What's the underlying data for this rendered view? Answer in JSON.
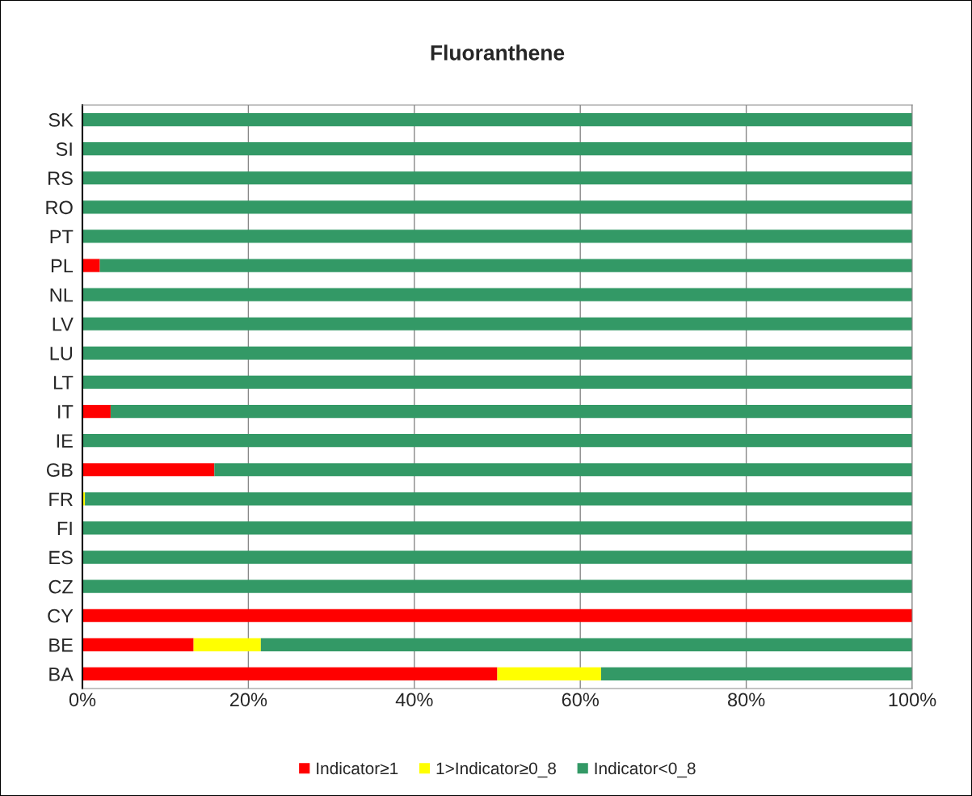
{
  "chart_data": {
    "type": "bar",
    "orientation": "horizontal",
    "stacked": true,
    "title": "Fluoranthene",
    "categories": [
      "SK",
      "SI",
      "RS",
      "RO",
      "PT",
      "PL",
      "NL",
      "LV",
      "LU",
      "LT",
      "IT",
      "IE",
      "GB",
      "FR",
      "FI",
      "ES",
      "CZ",
      "CY",
      "BE",
      "BA"
    ],
    "series": [
      {
        "name": "Indicator≥1",
        "color": "#ff0000",
        "values": [
          0,
          0,
          0,
          0,
          0,
          2.1,
          0,
          0,
          0,
          0,
          3.4,
          0,
          15.9,
          0,
          0,
          0,
          0,
          100,
          13.4,
          50
        ]
      },
      {
        "name": "1>Indicator≥0_8",
        "color": "#ffff00",
        "values": [
          0,
          0,
          0,
          0,
          0,
          0,
          0,
          0,
          0,
          0,
          0,
          0,
          0,
          0.3,
          0,
          0,
          0,
          0,
          8.1,
          12.5
        ]
      },
      {
        "name": "Indicator<0_8",
        "color": "#339966",
        "values": [
          100,
          100,
          100,
          100,
          100,
          97.9,
          100,
          100,
          100,
          100,
          96.6,
          100,
          84.1,
          99.7,
          100,
          100,
          100,
          0,
          78.5,
          37.5
        ]
      }
    ],
    "xlim": [
      0,
      100
    ],
    "xticks": [
      {
        "value": 0,
        "label": "0%"
      },
      {
        "value": 20,
        "label": "20%"
      },
      {
        "value": 40,
        "label": "40%"
      },
      {
        "value": 60,
        "label": "60%"
      },
      {
        "value": 80,
        "label": "80%"
      },
      {
        "value": 100,
        "label": "100%"
      }
    ],
    "grid": "x",
    "legend": "bottom"
  }
}
